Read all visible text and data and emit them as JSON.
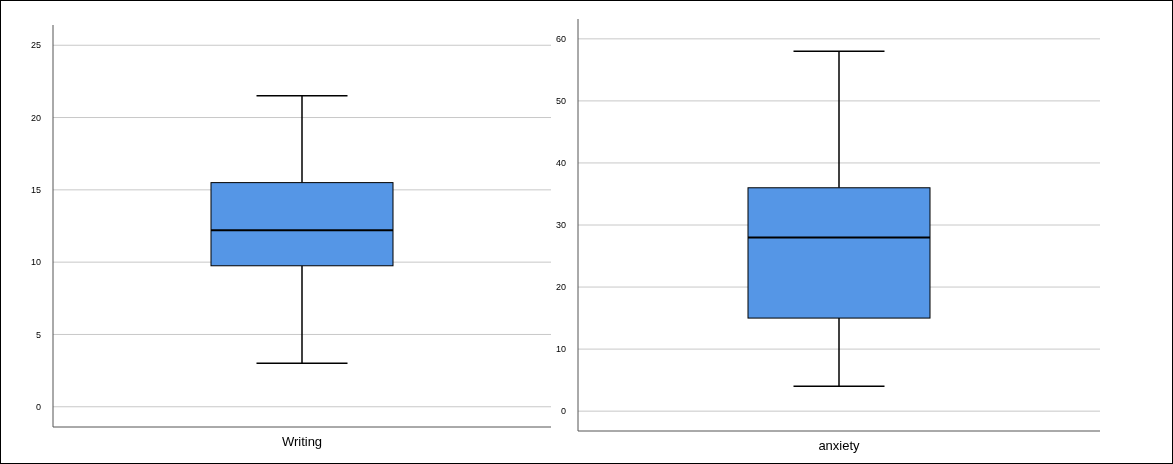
{
  "chart_data": [
    {
      "type": "box",
      "categories": [
        "Writing"
      ],
      "boxes": [
        {
          "low": 3,
          "q1": 9.75,
          "median": 12.2,
          "q3": 15.5,
          "high": 21.5
        }
      ],
      "color": "#5596e6",
      "ylim": [
        -1.4,
        26.4
      ],
      "yticks": [
        0,
        5,
        10,
        15,
        20,
        25
      ],
      "grid": "y"
    },
    {
      "type": "box",
      "categories": [
        "anxiety"
      ],
      "boxes": [
        {
          "low": 4,
          "q1": 15,
          "median": 28,
          "q3": 36,
          "high": 58
        }
      ],
      "color": "#5596e6",
      "ylim": [
        -3.2,
        63.2
      ],
      "yticks": [
        0,
        10,
        20,
        30,
        40,
        50,
        60
      ],
      "grid": "y"
    }
  ]
}
